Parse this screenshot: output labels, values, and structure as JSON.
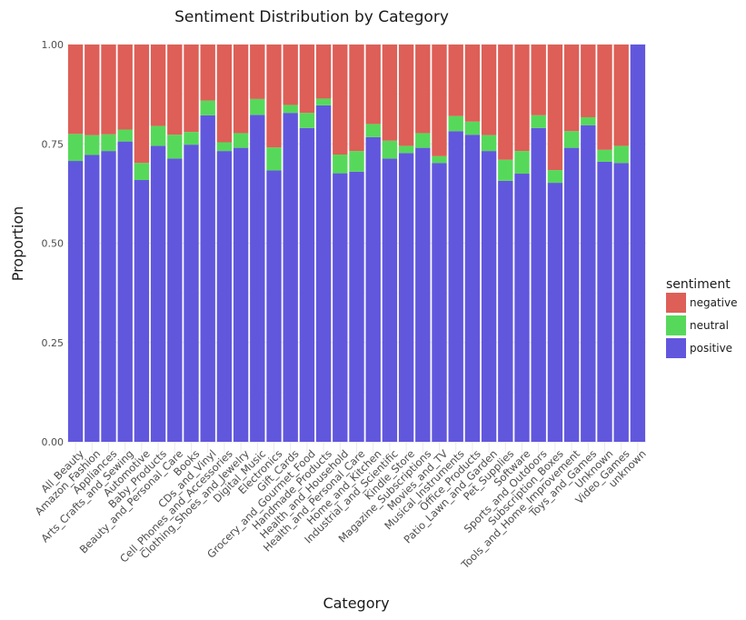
{
  "chart_data": {
    "type": "bar",
    "stacked": true,
    "title": "Sentiment Distribution by Category",
    "xlabel": "Category",
    "ylabel": "Proportion",
    "ylim": [
      0,
      1
    ],
    "yticks": [
      "0.00",
      "0.25",
      "0.50",
      "0.75",
      "1.00"
    ],
    "grid": true,
    "legend": {
      "title": "sentiment",
      "position": "right"
    },
    "categories": [
      "All_Beauty",
      "Amazon_Fashion",
      "Appliances",
      "Arts_Crafts_and_Sewing",
      "Automotive",
      "Baby_Products",
      "Beauty_and_Personal_Care",
      "Books",
      "CDs_and_Vinyl",
      "Cell_Phones_and_Accessories",
      "Clothing_Shoes_and_Jewelry",
      "Digital_Music",
      "Electronics",
      "Gift_Cards",
      "Grocery_and_Gourmet_Food",
      "Handmade_Products",
      "Health_and_Household",
      "Health_and_Personal_Care",
      "Home_and_Kitchen",
      "Industrial_and_Scientific",
      "Kindle_Store",
      "Magazine_Subscriptions",
      "Movies_and_TV",
      "Musical_Instruments",
      "Office_Products",
      "Patio_Lawn_and_Garden",
      "Pet_Supplies",
      "Software",
      "Sports_and_Outdoors",
      "Subscription_Boxes",
      "Tools_and_Home_Improvement",
      "Toys_and_Games",
      "Unknown",
      "Video_Games",
      "unknown"
    ],
    "series": [
      {
        "name": "positive",
        "color": "#6157dd",
        "values": [
          0.707,
          0.722,
          0.732,
          0.756,
          0.659,
          0.745,
          0.713,
          0.748,
          0.822,
          0.732,
          0.74,
          0.823,
          0.683,
          0.828,
          0.79,
          0.847,
          0.676,
          0.68,
          0.767,
          0.713,
          0.727,
          0.74,
          0.702,
          0.782,
          0.773,
          0.732,
          0.657,
          0.675,
          0.79,
          0.652,
          0.74,
          0.797,
          0.705,
          0.702,
          1.0
        ]
      },
      {
        "name": "neutral",
        "color": "#56d95a",
        "values": [
          0.068,
          0.05,
          0.042,
          0.03,
          0.043,
          0.05,
          0.06,
          0.032,
          0.037,
          0.022,
          0.037,
          0.04,
          0.058,
          0.02,
          0.038,
          0.017,
          0.047,
          0.052,
          0.033,
          0.045,
          0.018,
          0.037,
          0.017,
          0.038,
          0.033,
          0.04,
          0.053,
          0.057,
          0.032,
          0.032,
          0.042,
          0.02,
          0.03,
          0.043,
          0.0
        ]
      },
      {
        "name": "negative",
        "color": "#dd5f57",
        "values": [
          0.225,
          0.228,
          0.226,
          0.214,
          0.298,
          0.205,
          0.227,
          0.22,
          0.141,
          0.246,
          0.223,
          0.137,
          0.259,
          0.152,
          0.172,
          0.136,
          0.277,
          0.268,
          0.2,
          0.242,
          0.255,
          0.223,
          0.281,
          0.18,
          0.194,
          0.228,
          0.29,
          0.268,
          0.178,
          0.316,
          0.218,
          0.183,
          0.265,
          0.255,
          0.0
        ]
      }
    ]
  }
}
